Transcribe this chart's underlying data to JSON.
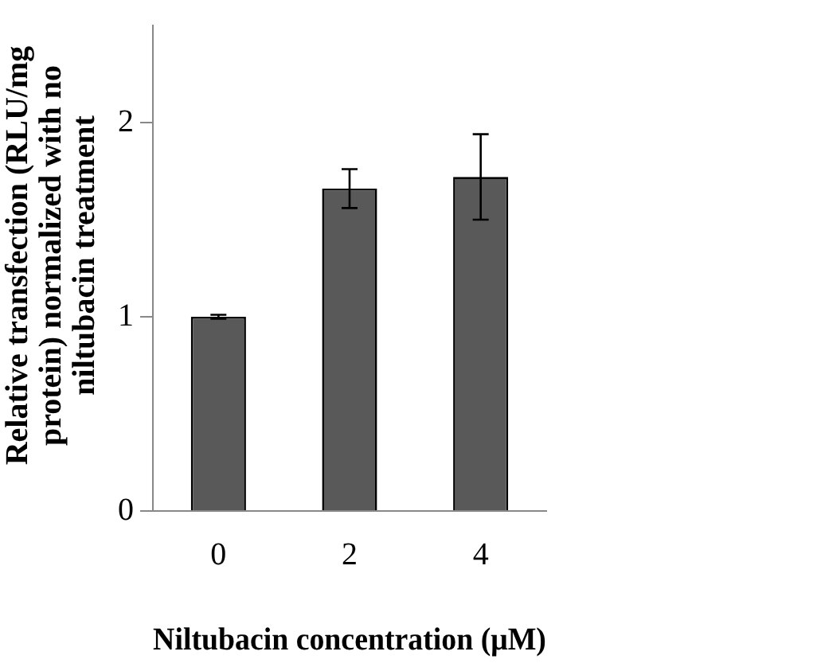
{
  "chart_data": {
    "type": "bar",
    "xlabel": "Niltubacin concentration (μM)",
    "ylabel": "Relative transfection (RLU/mg protein) normalized with no niltubacin treatment",
    "categories": [
      "0",
      "2",
      "4"
    ],
    "values": [
      1.0,
      1.66,
      1.72
    ],
    "errors": [
      0.01,
      0.1,
      0.22
    ],
    "color": "#595959",
    "ylim": [
      0,
      2.5
    ],
    "yticks": [
      0,
      1,
      2
    ],
    "grid": false,
    "legend": false
  }
}
